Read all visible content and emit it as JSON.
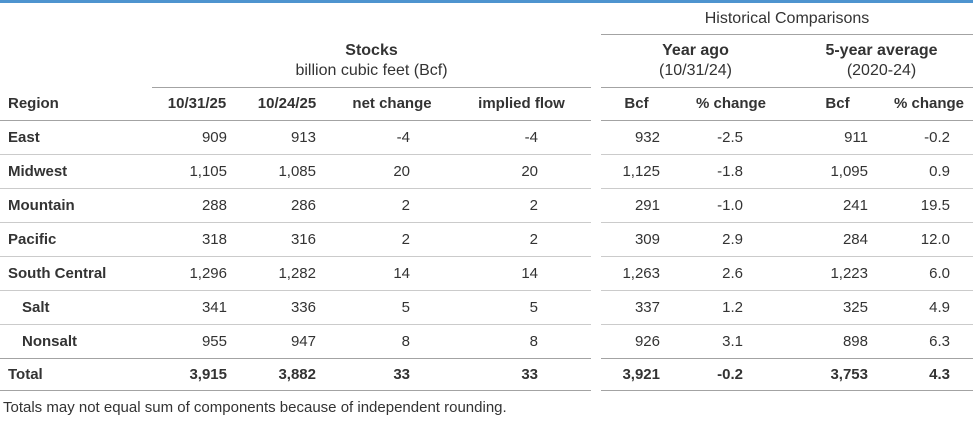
{
  "accent": {
    "top_bar_color": "#4e94cf"
  },
  "header": {
    "historical_comparisons": "Historical Comparisons",
    "stocks_title": "Stocks",
    "stocks_subtitle": "billion cubic feet (Bcf)",
    "year_ago_title": "Year ago",
    "year_ago_subtitle": "(10/31/24)",
    "five_year_title": "5-year average",
    "five_year_subtitle": "(2020-24)"
  },
  "columns": {
    "region": "Region",
    "stocks": [
      "10/31/25",
      "10/24/25",
      "net change",
      "implied flow"
    ],
    "year_ago": [
      "Bcf",
      "% change"
    ],
    "five_year": [
      "Bcf",
      "% change"
    ]
  },
  "rows": [
    {
      "region": "East",
      "indent": false,
      "total": false,
      "stocks": [
        "909",
        "913",
        "-4",
        "-4"
      ],
      "year_ago": [
        "932",
        "-2.5"
      ],
      "five_year": [
        "911",
        "-0.2"
      ]
    },
    {
      "region": "Midwest",
      "indent": false,
      "total": false,
      "stocks": [
        "1,105",
        "1,085",
        "20",
        "20"
      ],
      "year_ago": [
        "1,125",
        "-1.8"
      ],
      "five_year": [
        "1,095",
        "0.9"
      ]
    },
    {
      "region": "Mountain",
      "indent": false,
      "total": false,
      "stocks": [
        "288",
        "286",
        "2",
        "2"
      ],
      "year_ago": [
        "291",
        "-1.0"
      ],
      "five_year": [
        "241",
        "19.5"
      ]
    },
    {
      "region": "Pacific",
      "indent": false,
      "total": false,
      "stocks": [
        "318",
        "316",
        "2",
        "2"
      ],
      "year_ago": [
        "309",
        "2.9"
      ],
      "five_year": [
        "284",
        "12.0"
      ]
    },
    {
      "region": "South Central",
      "indent": false,
      "total": false,
      "stocks": [
        "1,296",
        "1,282",
        "14",
        "14"
      ],
      "year_ago": [
        "1,263",
        "2.6"
      ],
      "five_year": [
        "1,223",
        "6.0"
      ]
    },
    {
      "region": "Salt",
      "indent": true,
      "total": false,
      "stocks": [
        "341",
        "336",
        "5",
        "5"
      ],
      "year_ago": [
        "337",
        "1.2"
      ],
      "five_year": [
        "325",
        "4.9"
      ]
    },
    {
      "region": "Nonsalt",
      "indent": true,
      "total": false,
      "stocks": [
        "955",
        "947",
        "8",
        "8"
      ],
      "year_ago": [
        "926",
        "3.1"
      ],
      "five_year": [
        "898",
        "6.3"
      ]
    },
    {
      "region": "Total",
      "indent": false,
      "total": true,
      "stocks": [
        "3,915",
        "3,882",
        "33",
        "33"
      ],
      "year_ago": [
        "3,921",
        "-0.2"
      ],
      "five_year": [
        "3,753",
        "4.3"
      ]
    }
  ],
  "footnote": "Totals may not equal sum of components because of independent rounding."
}
